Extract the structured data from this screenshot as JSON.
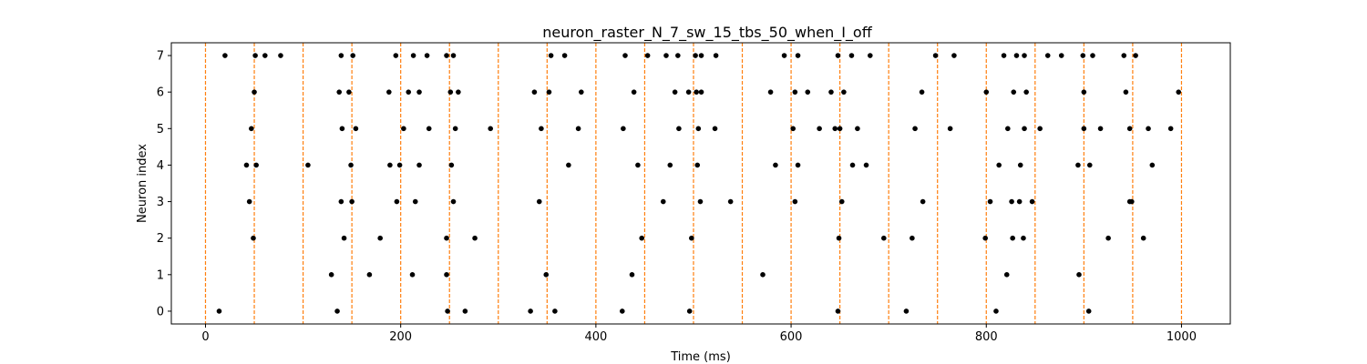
{
  "chart_data": {
    "type": "scatter",
    "title": "neuron_raster_N_7_sw_15_tbs_50_when_I_off",
    "xlabel": "Time (ms)",
    "ylabel": "Neuron index",
    "xlim": [
      -35,
      1050
    ],
    "ylim": [
      -0.35,
      7.35
    ],
    "xticks": [
      0,
      200,
      400,
      600,
      800,
      1000
    ],
    "yticks": [
      0,
      1,
      2,
      3,
      4,
      5,
      6,
      7
    ],
    "grid": false,
    "marker_color": "#000000",
    "vline_color": "#ff7f0e",
    "vlines": [
      0,
      50,
      100,
      150,
      200,
      250,
      300,
      350,
      400,
      450,
      500,
      550,
      600,
      650,
      700,
      750,
      800,
      850,
      900,
      950,
      1000
    ],
    "series": [
      {
        "neuron": 0,
        "spikes": [
          14,
          135,
          248,
          266,
          333,
          358,
          427,
          496,
          648,
          718,
          810,
          905
        ]
      },
      {
        "neuron": 1,
        "spikes": [
          129,
          168,
          212,
          247,
          349,
          437,
          571,
          821,
          895
        ]
      },
      {
        "neuron": 2,
        "spikes": [
          49,
          142,
          179,
          247,
          276,
          447,
          498,
          649,
          695,
          724,
          799,
          827,
          838,
          925,
          961
        ]
      },
      {
        "neuron": 3,
        "spikes": [
          45,
          139,
          150,
          196,
          215,
          254,
          342,
          469,
          507,
          538,
          604,
          652,
          735,
          804,
          826,
          834,
          847,
          947,
          949
        ]
      },
      {
        "neuron": 4,
        "spikes": [
          42,
          52,
          105,
          149,
          189,
          199,
          219,
          252,
          372,
          443,
          476,
          504,
          584,
          607,
          663,
          677,
          813,
          835,
          894,
          906,
          970
        ]
      },
      {
        "neuron": 5,
        "spikes": [
          47,
          140,
          154,
          203,
          229,
          256,
          292,
          344,
          382,
          428,
          485,
          505,
          522,
          602,
          629,
          645,
          650,
          668,
          727,
          763,
          822,
          839,
          855,
          900,
          917,
          947,
          966,
          989
        ]
      },
      {
        "neuron": 6,
        "spikes": [
          50,
          137,
          147,
          188,
          208,
          219,
          251,
          259,
          337,
          352,
          385,
          439,
          481,
          495,
          503,
          508,
          579,
          604,
          617,
          641,
          654,
          734,
          800,
          828,
          841,
          900,
          943,
          997
        ]
      },
      {
        "neuron": 7,
        "spikes": [
          20,
          51,
          61,
          77,
          139,
          151,
          195,
          213,
          227,
          247,
          254,
          354,
          368,
          430,
          453,
          472,
          484,
          502,
          508,
          523,
          593,
          607,
          648,
          662,
          681,
          748,
          767,
          818,
          831,
          839,
          863,
          877,
          899,
          909,
          941,
          953
        ]
      }
    ]
  }
}
